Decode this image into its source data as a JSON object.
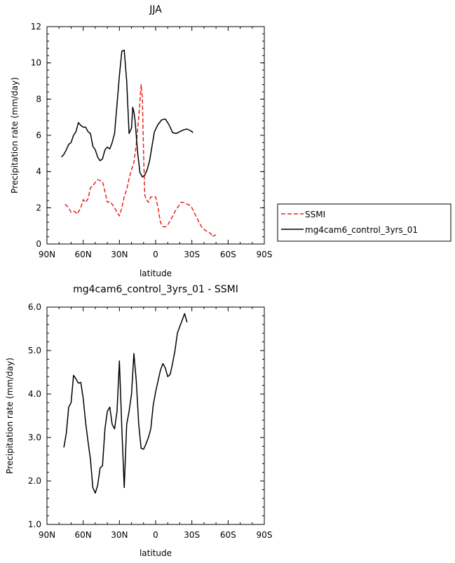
{
  "chart_data": [
    {
      "type": "line",
      "title": "JJA",
      "xlabel": "latitude",
      "ylabel": "Precipitation rate  (mm/day)",
      "xlim": [
        90,
        -90
      ],
      "ylim": [
        0,
        12
      ],
      "x_ticks": [
        90,
        60,
        30,
        0,
        -30,
        -60,
        -90
      ],
      "x_tick_labels": [
        "90N",
        "60N",
        "30N",
        "0",
        "30S",
        "60S",
        "90S"
      ],
      "y_ticks": [
        0,
        2,
        4,
        6,
        8,
        10,
        12
      ],
      "y_tick_labels": [
        "0",
        "2",
        "4",
        "6",
        "8",
        "10",
        "12"
      ],
      "legend": {
        "placement": "right"
      },
      "series": [
        {
          "name": "SSMI",
          "color": "#e8231e",
          "dash": "dashed",
          "points": [
            [
              75,
              2.2
            ],
            [
              72,
              2.0
            ],
            [
              70,
              1.75
            ],
            [
              67,
              1.8
            ],
            [
              65,
              1.65
            ],
            [
              62,
              2.0
            ],
            [
              60,
              2.45
            ],
            [
              58,
              2.3
            ],
            [
              56,
              2.5
            ],
            [
              54,
              3.1
            ],
            [
              52,
              3.2
            ],
            [
              50,
              3.4
            ],
            [
              48,
              3.55
            ],
            [
              46,
              3.5
            ],
            [
              44,
              3.45
            ],
            [
              42,
              2.9
            ],
            [
              40,
              2.3
            ],
            [
              38,
              2.35
            ],
            [
              36,
              2.2
            ],
            [
              34,
              2.0
            ],
            [
              32,
              1.75
            ],
            [
              30,
              1.55
            ],
            [
              28,
              2.0
            ],
            [
              26,
              2.6
            ],
            [
              24,
              3.0
            ],
            [
              22,
              3.6
            ],
            [
              20,
              4.1
            ],
            [
              18,
              4.5
            ],
            [
              16,
              5.5
            ],
            [
              14,
              7.0
            ],
            [
              12,
              8.8
            ],
            [
              11,
              8.0
            ],
            [
              10,
              5.0
            ],
            [
              9,
              2.7
            ],
            [
              8,
              2.5
            ],
            [
              6,
              2.3
            ],
            [
              4,
              2.6
            ],
            [
              2,
              2.6
            ],
            [
              0,
              2.6
            ],
            [
              -2,
              2.0
            ],
            [
              -4,
              1.2
            ],
            [
              -6,
              0.95
            ],
            [
              -8,
              0.95
            ],
            [
              -10,
              1.05
            ],
            [
              -13,
              1.4
            ],
            [
              -16,
              1.8
            ],
            [
              -19,
              2.1
            ],
            [
              -21,
              2.3
            ],
            [
              -23,
              2.3
            ],
            [
              -26,
              2.2
            ],
            [
              -28,
              2.15
            ],
            [
              -30,
              2.0
            ],
            [
              -33,
              1.6
            ],
            [
              -36,
              1.2
            ],
            [
              -38,
              0.95
            ],
            [
              -41,
              0.75
            ],
            [
              -44,
              0.65
            ],
            [
              -46,
              0.55
            ],
            [
              -47,
              0.4
            ],
            [
              -48,
              0.45
            ],
            [
              -50,
              0.5
            ]
          ]
        },
        {
          "name": "mg4cam6_control_3yrs_01",
          "color": "#000000",
          "dash": "solid",
          "points": [
            [
              78,
              4.8
            ],
            [
              76,
              4.95
            ],
            [
              74,
              5.2
            ],
            [
              72,
              5.5
            ],
            [
              70,
              5.6
            ],
            [
              68,
              6.0
            ],
            [
              66,
              6.2
            ],
            [
              64,
              6.7
            ],
            [
              62,
              6.55
            ],
            [
              60,
              6.45
            ],
            [
              58,
              6.45
            ],
            [
              56,
              6.2
            ],
            [
              54,
              6.1
            ],
            [
              52,
              5.4
            ],
            [
              50,
              5.2
            ],
            [
              48,
              4.8
            ],
            [
              46,
              4.6
            ],
            [
              44,
              4.7
            ],
            [
              42,
              5.2
            ],
            [
              40,
              5.35
            ],
            [
              38,
              5.25
            ],
            [
              36,
              5.6
            ],
            [
              34,
              6.1
            ],
            [
              32,
              7.7
            ],
            [
              30,
              9.3
            ],
            [
              28,
              10.65
            ],
            [
              26,
              10.7
            ],
            [
              24,
              9.0
            ],
            [
              22,
              6.1
            ],
            [
              20,
              6.4
            ],
            [
              19,
              7.55
            ],
            [
              18,
              7.3
            ],
            [
              17,
              6.8
            ],
            [
              15,
              5.1
            ],
            [
              13,
              3.95
            ],
            [
              11,
              3.7
            ],
            [
              9,
              3.8
            ],
            [
              7,
              4.1
            ],
            [
              5,
              4.6
            ],
            [
              3,
              5.4
            ],
            [
              1,
              6.2
            ],
            [
              -2,
              6.6
            ],
            [
              -5,
              6.85
            ],
            [
              -8,
              6.9
            ],
            [
              -11,
              6.6
            ],
            [
              -14,
              6.15
            ],
            [
              -17,
              6.1
            ],
            [
              -20,
              6.2
            ],
            [
              -23,
              6.3
            ],
            [
              -26,
              6.35
            ],
            [
              -29,
              6.25
            ],
            [
              -31,
              6.15
            ]
          ]
        }
      ]
    },
    {
      "type": "line",
      "title": "mg4cam6_control_3yrs_01 - SSMI",
      "xlabel": "latitude",
      "ylabel": "Precipitation rate  (mm/day)",
      "xlim": [
        90,
        -90
      ],
      "ylim": [
        1.0,
        6.0
      ],
      "x_ticks": [
        90,
        60,
        30,
        0,
        -30,
        -60,
        -90
      ],
      "x_tick_labels": [
        "90N",
        "60N",
        "30N",
        "0",
        "30S",
        "60S",
        "90S"
      ],
      "y_ticks": [
        1.0,
        2.0,
        3.0,
        4.0,
        5.0,
        6.0
      ],
      "y_tick_labels": [
        "1.0",
        "2.0",
        "3.0",
        "4.0",
        "5.0",
        "6.0"
      ],
      "series": [
        {
          "color": "#000000",
          "dash": "solid",
          "points": [
            [
              76,
              2.77
            ],
            [
              74,
              3.1
            ],
            [
              72,
              3.7
            ],
            [
              70,
              3.8
            ],
            [
              68,
              4.43
            ],
            [
              66,
              4.35
            ],
            [
              64,
              4.25
            ],
            [
              62,
              4.27
            ],
            [
              60,
              3.9
            ],
            [
              58,
              3.35
            ],
            [
              56,
              2.9
            ],
            [
              54,
              2.5
            ],
            [
              52,
              1.85
            ],
            [
              50,
              1.72
            ],
            [
              48,
              1.9
            ],
            [
              46,
              2.3
            ],
            [
              44,
              2.35
            ],
            [
              42,
              3.2
            ],
            [
              40,
              3.6
            ],
            [
              38,
              3.7
            ],
            [
              36,
              3.3
            ],
            [
              34,
              3.2
            ],
            [
              32,
              3.6
            ],
            [
              30,
              4.76
            ],
            [
              28,
              3.2
            ],
            [
              26,
              1.85
            ],
            [
              24,
              3.3
            ],
            [
              22,
              3.6
            ],
            [
              20,
              4.0
            ],
            [
              18,
              4.93
            ],
            [
              16,
              4.3
            ],
            [
              14,
              3.3
            ],
            [
              12,
              2.75
            ],
            [
              10,
              2.73
            ],
            [
              8,
              2.85
            ],
            [
              6,
              3.0
            ],
            [
              4,
              3.2
            ],
            [
              2,
              3.75
            ],
            [
              0,
              4.05
            ],
            [
              -2,
              4.3
            ],
            [
              -4,
              4.55
            ],
            [
              -6,
              4.7
            ],
            [
              -8,
              4.6
            ],
            [
              -10,
              4.4
            ],
            [
              -12,
              4.45
            ],
            [
              -14,
              4.7
            ],
            [
              -16,
              5.0
            ],
            [
              -18,
              5.4
            ],
            [
              -20,
              5.55
            ],
            [
              -22,
              5.7
            ],
            [
              -24,
              5.85
            ],
            [
              -26,
              5.65
            ]
          ]
        }
      ]
    }
  ]
}
